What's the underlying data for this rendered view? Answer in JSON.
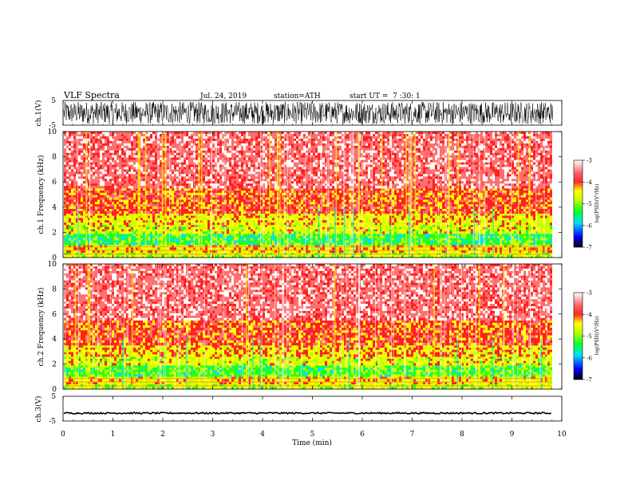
{
  "header": {
    "title": "VLF Spectra",
    "date": "Jul. 24, 2019",
    "station": "station=ATH",
    "start": "start UT =  7 :30: 1"
  },
  "colors": {
    "waveform": "#000000",
    "spectrogram_scale": [
      "#000000",
      "#0000ff",
      "#00e0ff",
      "#00ff30",
      "#c8ff00",
      "#ffff00",
      "#ff3c3c",
      "#ffffff"
    ]
  },
  "chart_data": [
    {
      "type": "line",
      "panel": "ch1-waveform",
      "ylabel": "ch.1(V)",
      "ylim": [
        -5,
        5
      ],
      "yticks": [
        "5",
        "-5"
      ],
      "x": "time",
      "xlim": [
        0,
        10
      ],
      "description_values": {
        "amplitude_range_V": [
          -4.5,
          4.5
        ],
        "continuous_noise": true
      }
    },
    {
      "type": "heatmap",
      "panel": "ch1-spectrogram",
      "ylabel": "ch.1 Frequency (kHz)",
      "ylim": [
        0,
        10
      ],
      "yticks": [
        "0",
        "2",
        "4",
        "6",
        "8",
        "10"
      ],
      "xlim": [
        0,
        10
      ],
      "data_extent_min": 9.8,
      "colorbar": {
        "label": "log(PSD)(V²/Hz)",
        "range": [
          -7,
          -3
        ],
        "ticks": [
          "-3",
          "-4",
          "-5",
          "-6",
          "-7"
        ]
      },
      "bands": [
        {
          "freq_khz": [
            0,
            0.4
          ],
          "level": -4.6
        },
        {
          "freq_khz": [
            0.4,
            1.0
          ],
          "level": -4.4
        },
        {
          "freq_khz": [
            1.0,
            1.9
          ],
          "level": -5.0
        },
        {
          "freq_khz": [
            1.9,
            2.6
          ],
          "level": -4.5
        },
        {
          "freq_khz": [
            2.6,
            3.5
          ],
          "level": -4.4
        },
        {
          "freq_khz": [
            3.5,
            5.5
          ],
          "level": -4.0
        },
        {
          "freq_khz": [
            5.5,
            10.0
          ],
          "level": -3.6
        }
      ]
    },
    {
      "type": "heatmap",
      "panel": "ch2-spectrogram",
      "ylabel": "ch.2 Frequency (kHz)",
      "ylim": [
        0,
        10
      ],
      "yticks": [
        "0",
        "2",
        "4",
        "6",
        "8",
        "10"
      ],
      "xlim": [
        0,
        10
      ],
      "data_extent_min": 9.8,
      "colorbar": {
        "label": "log(PSD)(V²/Hz)",
        "range": [
          -7,
          -3
        ],
        "ticks": [
          "-3",
          "-4",
          "-5",
          "-6",
          "-7"
        ]
      },
      "bands": [
        {
          "freq_khz": [
            0,
            0.4
          ],
          "level": -4.6
        },
        {
          "freq_khz": [
            0.4,
            1.0
          ],
          "level": -4.4
        },
        {
          "freq_khz": [
            1.0,
            1.9
          ],
          "level": -4.9
        },
        {
          "freq_khz": [
            1.9,
            2.6
          ],
          "level": -4.5
        },
        {
          "freq_khz": [
            2.6,
            3.5
          ],
          "level": -4.3
        },
        {
          "freq_khz": [
            3.5,
            5.5
          ],
          "level": -4.0
        },
        {
          "freq_khz": [
            5.5,
            10.0
          ],
          "level": -3.6
        }
      ]
    },
    {
      "type": "line",
      "panel": "ch3-waveform",
      "ylabel": "ch.3(V)",
      "ylim": [
        -5,
        5
      ],
      "yticks": [
        "5",
        "-5"
      ],
      "xlim": [
        0,
        10
      ],
      "description_values": {
        "mean_V": -1.8,
        "amplitude_range_V": [
          -2.1,
          -1.5
        ]
      }
    }
  ],
  "x_axis": {
    "label": "Time (min)",
    "ticks": [
      "0",
      "1",
      "2",
      "3",
      "4",
      "5",
      "6",
      "7",
      "8",
      "9",
      "10"
    ]
  }
}
